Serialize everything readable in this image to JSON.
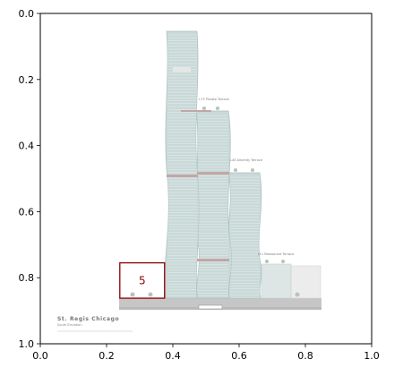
{
  "axes": {
    "x": {
      "lim": [
        0.0,
        1.0
      ],
      "ticks": [
        "0.0",
        "0.2",
        "0.4",
        "0.6",
        "0.8",
        "1.0"
      ]
    },
    "y": {
      "lim": [
        0.0,
        1.0
      ],
      "inverted": true,
      "ticks": [
        "0.0",
        "0.2",
        "0.4",
        "0.6",
        "0.8",
        "1.0"
      ]
    }
  },
  "image": {
    "kind": "architectural-elevation-drawing",
    "title": "St. Regis Chicago",
    "subtitle": "South Elevation",
    "callouts": [
      {
        "text": "L73 Private Terrace"
      },
      {
        "text": "L45 Amenity Terrace"
      },
      {
        "text": "L11 Restaurant Terrace"
      }
    ],
    "colors": {
      "glass": "#c9d9d8",
      "glass_dark": "#9fbcbc",
      "mullion": "#e9f0ef",
      "band": "#c3a5a5",
      "podium": "#c6c6c6",
      "base": "#b9b9b9"
    }
  },
  "annotation": {
    "label": "5",
    "x_range": [
      0.24,
      0.375
    ],
    "y_range": [
      0.755,
      0.862
    ],
    "color": "#8b0000"
  }
}
